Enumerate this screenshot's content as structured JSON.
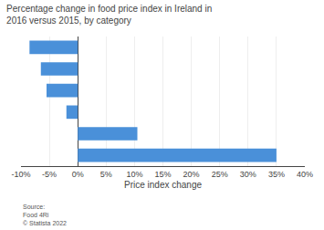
{
  "chart_data": {
    "type": "bar",
    "orientation": "horizontal",
    "title": "Percentage change in food price index in Ireland in 2016 versus 2015, by category",
    "categories": [
      null,
      null,
      null,
      null,
      null,
      null
    ],
    "values": [
      -8.5,
      -6.5,
      -5.5,
      -2.0,
      10.5,
      35.0
    ],
    "color": "#4a90d9",
    "xlabel": "Price index change",
    "xlim": [
      -10,
      40
    ],
    "xticks": [
      {
        "value": -10,
        "label": "-10%"
      },
      {
        "value": -5,
        "label": "-5%"
      },
      {
        "value": 0,
        "label": "0%"
      },
      {
        "value": 5,
        "label": "5%"
      },
      {
        "value": 10,
        "label": "10%"
      },
      {
        "value": 15,
        "label": "15%"
      },
      {
        "value": 20,
        "label": "20%"
      },
      {
        "value": 25,
        "label": "25%"
      },
      {
        "value": 30,
        "label": "30%"
      },
      {
        "value": 35,
        "label": "35%"
      },
      {
        "value": 40,
        "label": "40%"
      }
    ],
    "grid": true,
    "annotations": [
      "Source:\nFood 4Ri\n© Statista 2022"
    ]
  }
}
